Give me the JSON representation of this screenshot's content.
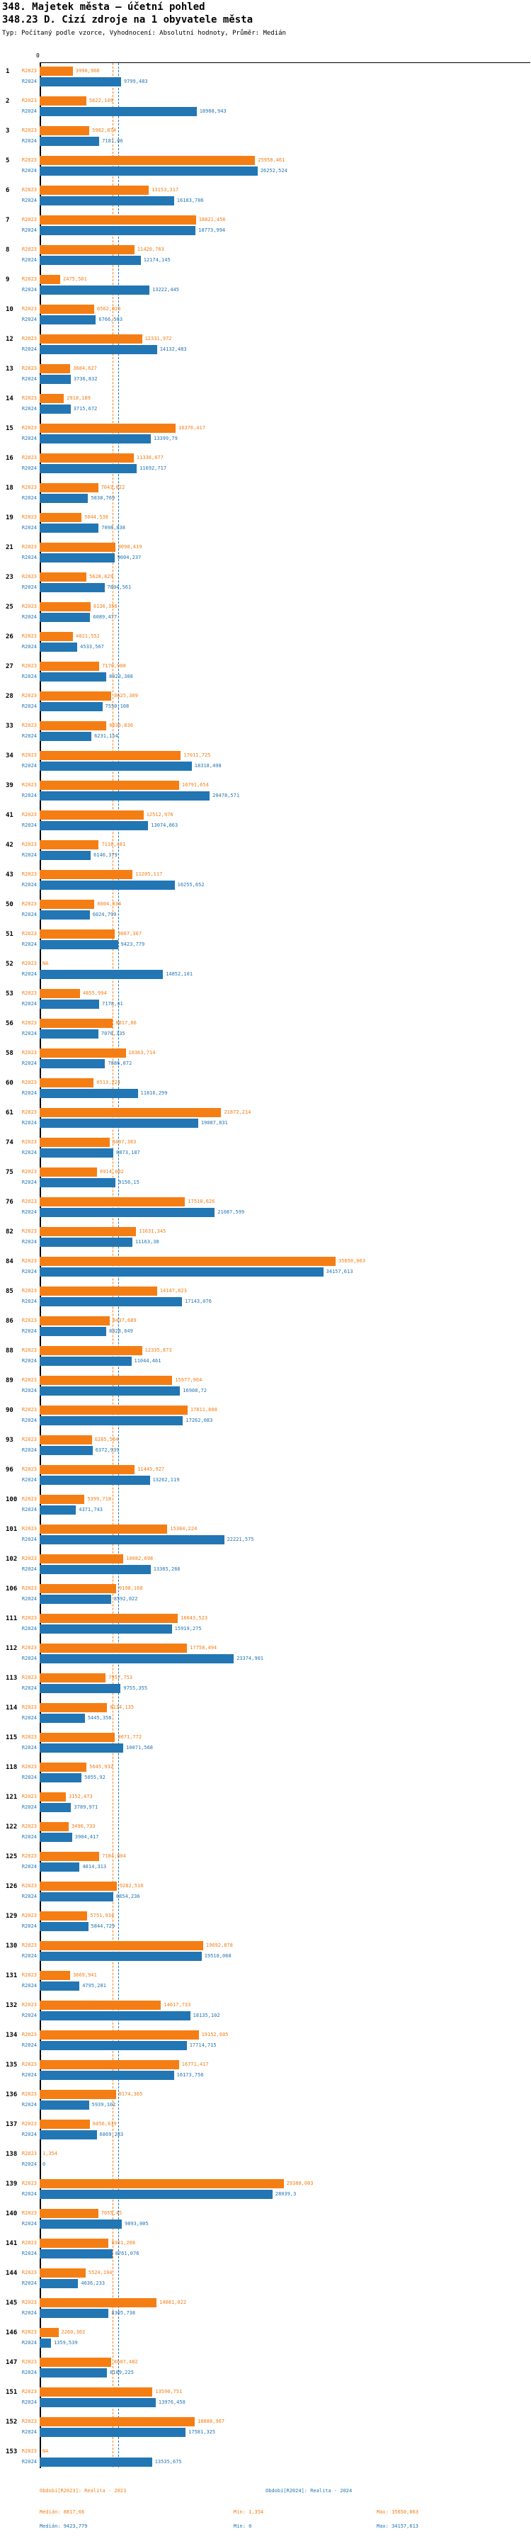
{
  "title": "348. Majetek města – účetní pohled",
  "subtitle": "348.23 D. Cizí zdroje na 1 obyvatele města",
  "meta": "Typ: Počítaný podle vzorce, Vyhodnocení: Absolutní hodnoty, Průměr: Medián",
  "axis": {
    "zero_label": "0",
    "implied_x_max": 59100
  },
  "colors": {
    "r2023": "#F57E14",
    "r2024": "#2276B4"
  },
  "footer": {
    "period_r2023": "Období[R2023]: Realita - 2023",
    "period_r2024": "Období[R2024]: Realita - 2024",
    "median_r2023": "Medián: 8817,66",
    "min_r2023": "Min: 1,354",
    "max_r2023": "Max: 35650,063",
    "median_r2024": "Medián: 9423,779",
    "min_r2024": "Min: 0",
    "max_r2024": "Max: 34157,613"
  },
  "chart_data": {
    "type": "bar",
    "orientation": "horizontal",
    "value_format": "czech decimal comma, NA = missing",
    "series_names": [
      "R2023",
      "R2024"
    ],
    "legend_position": "bottom",
    "grid": false,
    "xlim": [
      0,
      59100
    ],
    "median_lines": {
      "R2023": "8817,66",
      "R2024": "9423,779"
    },
    "stats": {
      "R2023": {
        "median": "8817,66",
        "min": "1,354",
        "max": "35650,063"
      },
      "R2024": {
        "median": "9423,779",
        "min": "0",
        "max": "34157,613"
      }
    },
    "rows": [
      {
        "id": "1",
        "r2023": "3990,968",
        "r2024": "9799,483"
      },
      {
        "id": "2",
        "r2023": "5622,149",
        "r2024": "18908,943"
      },
      {
        "id": "3",
        "r2023": "5982,874",
        "r2024": "7181,06"
      },
      {
        "id": "5",
        "r2023": "25958,461",
        "r2024": "26252,524"
      },
      {
        "id": "6",
        "r2023": "13153,317",
        "r2024": "16183,706"
      },
      {
        "id": "7",
        "r2023": "18821,456",
        "r2024": "18773,994"
      },
      {
        "id": "8",
        "r2023": "11420,763",
        "r2024": "12174,145"
      },
      {
        "id": "9",
        "r2023": "2475,501",
        "r2024": "13222,445"
      },
      {
        "id": "10",
        "r2023": "6562,025",
        "r2024": "6766,563"
      },
      {
        "id": "12",
        "r2023": "12331,972",
        "r2024": "14132,483"
      },
      {
        "id": "13",
        "r2023": "3684,627",
        "r2024": "3736,832"
      },
      {
        "id": "14",
        "r2023": "2918,189",
        "r2024": "3715,672"
      },
      {
        "id": "15",
        "r2023": "16376,417",
        "r2024": "13399,79"
      },
      {
        "id": "16",
        "r2023": "11336,677",
        "r2024": "11692,717"
      },
      {
        "id": "18",
        "r2023": "7043,022",
        "r2024": "5838,769"
      },
      {
        "id": "19",
        "r2023": "5044,538",
        "r2024": "7098,838"
      },
      {
        "id": "21",
        "r2023": "9098,419",
        "r2024": "9004,237"
      },
      {
        "id": "23",
        "r2023": "5628,829",
        "r2024": "7804,561"
      },
      {
        "id": "25",
        "r2023": "6136,356",
        "r2024": "6089,477"
      },
      {
        "id": "26",
        "r2023": "4021,552",
        "r2024": "4533,567"
      },
      {
        "id": "27",
        "r2023": "7170,988",
        "r2024": "8023,308"
      },
      {
        "id": "28",
        "r2023": "8625,309",
        "r2024": "7550,108"
      },
      {
        "id": "33",
        "r2023": "8036,836",
        "r2024": "6231,154"
      },
      {
        "id": "34",
        "r2023": "17011,725",
        "r2024": "18318,498"
      },
      {
        "id": "39",
        "r2023": "16791,654",
        "r2024": "20478,571"
      },
      {
        "id": "41",
        "r2023": "12512,976",
        "r2024": "13074,863"
      },
      {
        "id": "42",
        "r2023": "7116,481",
        "r2024": "6146,379"
      },
      {
        "id": "43",
        "r2023": "11205,117",
        "r2024": "16255,652"
      },
      {
        "id": "50",
        "r2023": "6604,834",
        "r2024": "6024,799"
      },
      {
        "id": "51",
        "r2023": "9067,367",
        "r2024": "9423,779"
      },
      {
        "id": "52",
        "r2023": "NA",
        "r2024": "14852,101"
      },
      {
        "id": "53",
        "r2023": "4855,994",
        "r2024": "7178,41"
      },
      {
        "id": "56",
        "r2023": "8817,66",
        "r2024": "7070,335"
      },
      {
        "id": "58",
        "r2023": "10363,714",
        "r2024": "7886,072"
      },
      {
        "id": "60",
        "r2023": "6513,224",
        "r2024": "11816,299"
      },
      {
        "id": "61",
        "r2023": "21872,214",
        "r2024": "19087,831"
      },
      {
        "id": "74",
        "r2023": "8407,383",
        "r2024": "8873,187"
      },
      {
        "id": "75",
        "r2023": "6914,002",
        "r2024": "9156,15"
      },
      {
        "id": "76",
        "r2023": "17518,626",
        "r2024": "21087,599"
      },
      {
        "id": "82",
        "r2023": "11631,345",
        "r2024": "11163,38"
      },
      {
        "id": "84",
        "r2023": "35650,063",
        "r2024": "34157,613"
      },
      {
        "id": "85",
        "r2023": "14147,823",
        "r2024": "17143,076"
      },
      {
        "id": "86",
        "r2023": "8437,689",
        "r2024": "8028,649"
      },
      {
        "id": "88",
        "r2023": "12335,873",
        "r2024": "11044,461"
      },
      {
        "id": "89",
        "r2023": "15977,964",
        "r2024": "16908,72"
      },
      {
        "id": "90",
        "r2023": "17811,808",
        "r2024": "17262,083"
      },
      {
        "id": "93",
        "r2023": "6285,564",
        "r2024": "6372,939"
      },
      {
        "id": "96",
        "r2023": "11445,927",
        "r2024": "13262,119"
      },
      {
        "id": "100",
        "r2023": "5399,718",
        "r2024": "4371,743"
      },
      {
        "id": "101",
        "r2023": "15384,224",
        "r2024": "22221,575"
      },
      {
        "id": "102",
        "r2023": "10082,698",
        "r2024": "13365,266"
      },
      {
        "id": "106",
        "r2023": "9198,168",
        "r2024": "8592,022"
      },
      {
        "id": "111",
        "r2023": "16643,523",
        "r2024": "15919,275"
      },
      {
        "id": "112",
        "r2023": "17758,494",
        "r2024": "23374,901"
      },
      {
        "id": "113",
        "r2023": "7957,753",
        "r2024": "9755,355"
      },
      {
        "id": "114",
        "r2023": "8134,135",
        "r2024": "5445,356"
      },
      {
        "id": "115",
        "r2023": "9071,772",
        "r2024": "10071,568"
      },
      {
        "id": "118",
        "r2023": "5645,932",
        "r2024": "5055,92"
      },
      {
        "id": "121",
        "r2023": "3152,473",
        "r2024": "3789,971"
      },
      {
        "id": "122",
        "r2023": "3490,733",
        "r2024": "3904,417"
      },
      {
        "id": "125",
        "r2023": "7184,804",
        "r2024": "4814,313"
      },
      {
        "id": "126",
        "r2023": "9282,516",
        "r2024": "8854,236"
      },
      {
        "id": "129",
        "r2023": "5751,934",
        "r2024": "5844,729"
      },
      {
        "id": "130",
        "r2023": "19692,878",
        "r2024": "19510,068"
      },
      {
        "id": "131",
        "r2023": "3669,941",
        "r2024": "4795,281"
      },
      {
        "id": "132",
        "r2023": "14617,733",
        "r2024": "18135,102"
      },
      {
        "id": "134",
        "r2023": "19152,605",
        "r2024": "17714,715"
      },
      {
        "id": "135",
        "r2023": "16771,417",
        "r2024": "16173,756"
      },
      {
        "id": "136",
        "r2023": "9174,365",
        "r2024": "5939,102"
      },
      {
        "id": "137",
        "r2023": "6056,619",
        "r2024": "6869,283"
      },
      {
        "id": "138",
        "r2023": "1,354",
        "r2024": "0"
      },
      {
        "id": "139",
        "r2023": "29388,003",
        "r2024": "28039,3"
      },
      {
        "id": "140",
        "r2023": "7055,45",
        "r2024": "9893,005"
      },
      {
        "id": "141",
        "r2023": "8301,208",
        "r2024": "8761,076"
      },
      {
        "id": "144",
        "r2023": "5524,194",
        "r2024": "4636,233"
      },
      {
        "id": "145",
        "r2023": "14081,022",
        "r2024": "8305,738"
      },
      {
        "id": "146",
        "r2023": "2260,302",
        "r2024": "1359,539"
      },
      {
        "id": "147",
        "r2023": "8607,482",
        "r2024": "8109,225"
      },
      {
        "id": "151",
        "r2023": "13590,751",
        "r2024": "13976,458"
      },
      {
        "id": "152",
        "r2023": "18688,967",
        "r2024": "17581,325"
      },
      {
        "id": "153",
        "r2023": "NA",
        "r2024": "13535,675"
      }
    ]
  }
}
